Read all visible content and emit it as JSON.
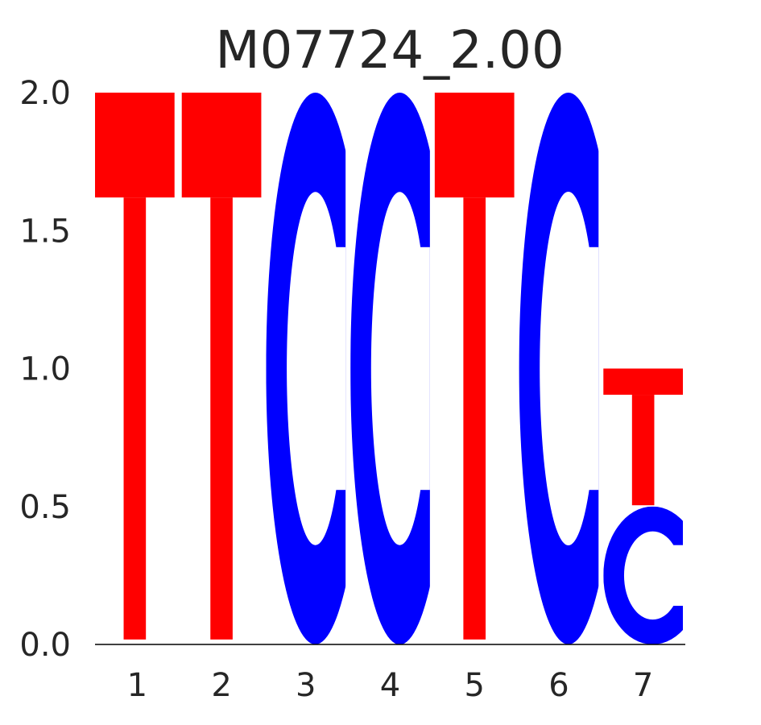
{
  "chart_data": {
    "type": "sequence-logo",
    "title": "M07724_2.00",
    "xlabel": "",
    "ylabel": "",
    "ylim": [
      0,
      2
    ],
    "y_ticks": [
      "0.0",
      "0.5",
      "1.0",
      "1.5",
      "2.0"
    ],
    "x_ticks": [
      "1",
      "2",
      "3",
      "4",
      "5",
      "6",
      "7"
    ],
    "grid": false,
    "colors": {
      "T": "#ff0000",
      "C": "#0000ff"
    },
    "positions": [
      {
        "position": "1",
        "letters": [
          {
            "letter": "T",
            "bits": 2.0
          }
        ]
      },
      {
        "position": "2",
        "letters": [
          {
            "letter": "T",
            "bits": 2.0
          }
        ]
      },
      {
        "position": "3",
        "letters": [
          {
            "letter": "C",
            "bits": 2.0
          }
        ]
      },
      {
        "position": "4",
        "letters": [
          {
            "letter": "C",
            "bits": 2.0
          }
        ]
      },
      {
        "position": "5",
        "letters": [
          {
            "letter": "T",
            "bits": 2.0
          }
        ]
      },
      {
        "position": "6",
        "letters": [
          {
            "letter": "C",
            "bits": 2.0
          }
        ]
      },
      {
        "position": "7",
        "letters": [
          {
            "letter": "C",
            "bits": 0.5
          },
          {
            "letter": "T",
            "bits": 0.5
          }
        ]
      }
    ]
  }
}
